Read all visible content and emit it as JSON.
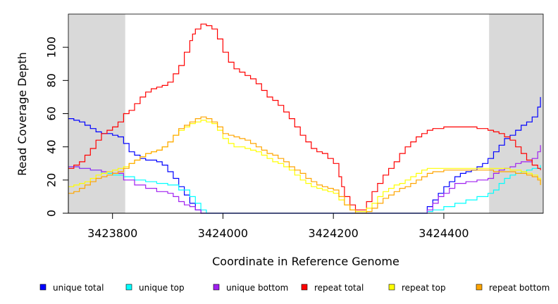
{
  "chart_data": {
    "type": "line",
    "xlabel": "Coordinate in Reference Genome",
    "ylabel": "Read Coverage Depth",
    "xlim": [
      3423720,
      3424580
    ],
    "ylim": [
      0,
      120
    ],
    "x_ticks": [
      {
        "value": 3423800,
        "label": "3423800"
      },
      {
        "value": 3424000,
        "label": "3424000"
      },
      {
        "value": 3424200,
        "label": "3424200"
      },
      {
        "value": 3424400,
        "label": "3424400"
      }
    ],
    "y_ticks": [
      {
        "value": 0,
        "label": "0"
      },
      {
        "value": 20,
        "label": "20"
      },
      {
        "value": 40,
        "label": "40"
      },
      {
        "value": 60,
        "label": "60"
      },
      {
        "value": 80,
        "label": "80"
      },
      {
        "value": 100,
        "label": "100"
      }
    ],
    "shaded_regions": [
      {
        "x0": 3423720,
        "x1": 3423823
      },
      {
        "x0": 3424482,
        "x1": 3424580
      }
    ],
    "background_color": "#d9d9d9",
    "grid": false,
    "legend_position": "bottom",
    "series": [
      {
        "name": "unique total",
        "color": "#0000ff",
        "x": [
          3423720,
          3423730,
          3423740,
          3423750,
          3423760,
          3423770,
          3423780,
          3423790,
          3423800,
          3423810,
          3423820,
          3423830,
          3423840,
          3423850,
          3423860,
          3423870,
          3423880,
          3423890,
          3423900,
          3423910,
          3423920,
          3423930,
          3423940,
          3423950,
          3423960,
          3424000,
          3424100,
          3424200,
          3424300,
          3424360,
          3424370,
          3424380,
          3424390,
          3424400,
          3424410,
          3424420,
          3424430,
          3424440,
          3424450,
          3424460,
          3424470,
          3424480,
          3424490,
          3424500,
          3424510,
          3424520,
          3424530,
          3424540,
          3424550,
          3424560,
          3424570,
          3424575
        ],
        "y": [
          57,
          56,
          55,
          53,
          51,
          49,
          48,
          48,
          47,
          46,
          42,
          37,
          35,
          33,
          32,
          32,
          31,
          29,
          25,
          21,
          16,
          11,
          6,
          2,
          0,
          0,
          0,
          0,
          0,
          0,
          4,
          8,
          12,
          16,
          19,
          22,
          24,
          25,
          26,
          28,
          30,
          33,
          37,
          41,
          45,
          47,
          50,
          53,
          55,
          58,
          64,
          70
        ]
      },
      {
        "name": "unique top",
        "color": "#00ffff",
        "x": [
          3423720,
          3423740,
          3423760,
          3423780,
          3423800,
          3423820,
          3423840,
          3423860,
          3423880,
          3423900,
          3423920,
          3423940,
          3423950,
          3423960,
          3423970,
          3424000,
          3424100,
          3424200,
          3424300,
          3424360,
          3424370,
          3424380,
          3424400,
          3424420,
          3424440,
          3424460,
          3424480,
          3424490,
          3424500,
          3424510,
          3424520,
          3424530,
          3424540,
          3424550,
          3424560,
          3424575
        ],
        "y": [
          28,
          27,
          26,
          24,
          23,
          22,
          20,
          19,
          18,
          17,
          14,
          10,
          6,
          2,
          0,
          0,
          0,
          0,
          0,
          0,
          1,
          2,
          4,
          6,
          8,
          10,
          12,
          14,
          18,
          21,
          23,
          24,
          25,
          26,
          27,
          29
        ]
      },
      {
        "name": "unique bottom",
        "color": "#a020f0",
        "x": [
          3423720,
          3423740,
          3423760,
          3423780,
          3423800,
          3423820,
          3423840,
          3423860,
          3423880,
          3423900,
          3423910,
          3423920,
          3423930,
          3423940,
          3423950,
          3423960,
          3424000,
          3424100,
          3424200,
          3424300,
          3424360,
          3424370,
          3424380,
          3424390,
          3424400,
          3424410,
          3424420,
          3424440,
          3424460,
          3424480,
          3424490,
          3424500,
          3424510,
          3424520,
          3424530,
          3424540,
          3424550,
          3424560,
          3424570,
          3424575
        ],
        "y": [
          28,
          27,
          26,
          25,
          24,
          20,
          17,
          15,
          13,
          12,
          10,
          7,
          5,
          4,
          2,
          0,
          0,
          0,
          0,
          0,
          0,
          2,
          6,
          10,
          12,
          15,
          18,
          19,
          20,
          21,
          24,
          26,
          27,
          28,
          30,
          31,
          31,
          33,
          37,
          41
        ]
      },
      {
        "name": "repeat total",
        "color": "#ff0000",
        "x": [
          3423720,
          3423730,
          3423740,
          3423750,
          3423760,
          3423770,
          3423780,
          3423790,
          3423800,
          3423810,
          3423820,
          3423830,
          3423840,
          3423850,
          3423860,
          3423870,
          3423880,
          3423890,
          3423900,
          3423910,
          3423920,
          3423930,
          3423940,
          3423945,
          3423950,
          3423960,
          3423970,
          3423980,
          3423990,
          3424000,
          3424010,
          3424020,
          3424030,
          3424040,
          3424050,
          3424060,
          3424070,
          3424080,
          3424090,
          3424100,
          3424110,
          3424120,
          3424130,
          3424140,
          3424150,
          3424160,
          3424170,
          3424180,
          3424190,
          3424200,
          3424210,
          3424215,
          3424220,
          3424230,
          3424240,
          3424250,
          3424260,
          3424270,
          3424280,
          3424290,
          3424300,
          3424310,
          3424320,
          3424330,
          3424340,
          3424350,
          3424360,
          3424370,
          3424380,
          3424390,
          3424400,
          3424410,
          3424420,
          3424430,
          3424440,
          3424450,
          3424460,
          3424470,
          3424480,
          3424490,
          3424500,
          3424510,
          3424520,
          3424530,
          3424540,
          3424550,
          3424560,
          3424570,
          3424575
        ],
        "y": [
          27,
          29,
          31,
          35,
          39,
          44,
          48,
          50,
          52,
          55,
          60,
          62,
          66,
          70,
          73,
          75,
          76,
          77,
          79,
          84,
          89,
          97,
          104,
          108,
          111,
          114,
          113,
          111,
          105,
          97,
          91,
          87,
          85,
          83,
          81,
          78,
          74,
          70,
          68,
          65,
          61,
          57,
          52,
          47,
          43,
          39,
          37,
          36,
          33,
          30,
          22,
          16,
          10,
          5,
          2,
          2,
          7,
          13,
          18,
          23,
          27,
          31,
          36,
          40,
          43,
          46,
          48,
          50,
          51,
          51,
          52,
          52,
          52,
          52,
          52,
          52,
          51,
          51,
          50,
          49,
          48,
          46,
          44,
          40,
          36,
          32,
          29,
          27,
          26
        ]
      },
      {
        "name": "repeat top",
        "color": "#ffff00",
        "x": [
          3423720,
          3423730,
          3423740,
          3423750,
          3423760,
          3423770,
          3423780,
          3423790,
          3423800,
          3423810,
          3423820,
          3423830,
          3423840,
          3423850,
          3423860,
          3423870,
          3423880,
          3423890,
          3423900,
          3423910,
          3423920,
          3423930,
          3423940,
          3423950,
          3423960,
          3423970,
          3423980,
          3423990,
          3424000,
          3424010,
          3424020,
          3424030,
          3424040,
          3424050,
          3424060,
          3424070,
          3424080,
          3424090,
          3424100,
          3424110,
          3424120,
          3424130,
          3424140,
          3424150,
          3424160,
          3424170,
          3424180,
          3424190,
          3424200,
          3424210,
          3424220,
          3424230,
          3424240,
          3424250,
          3424260,
          3424270,
          3424280,
          3424290,
          3424300,
          3424310,
          3424320,
          3424330,
          3424340,
          3424350,
          3424360,
          3424370,
          3424380,
          3424390,
          3424400,
          3424410,
          3424420,
          3424440,
          3424460,
          3424480,
          3424490,
          3424500,
          3424510,
          3424520,
          3424530,
          3424540,
          3424550,
          3424560,
          3424570,
          3424575
        ],
        "y": [
          16,
          17,
          18,
          19,
          21,
          23,
          24,
          25,
          26,
          27,
          28,
          30,
          32,
          34,
          36,
          37,
          38,
          40,
          43,
          47,
          50,
          52,
          54,
          55,
          56,
          55,
          54,
          50,
          45,
          42,
          40,
          40,
          39,
          38,
          37,
          35,
          33,
          31,
          30,
          28,
          26,
          23,
          20,
          18,
          16,
          15,
          14,
          13,
          12,
          8,
          5,
          2,
          1,
          1,
          3,
          6,
          10,
          13,
          15,
          17,
          18,
          20,
          22,
          24,
          26,
          27,
          27,
          27,
          27,
          27,
          27,
          27,
          27,
          27,
          27,
          27,
          27,
          26,
          26,
          25,
          24,
          23,
          21,
          17
        ]
      },
      {
        "name": "repeat bottom",
        "color": "#ffa500",
        "x": [
          3423720,
          3423730,
          3423740,
          3423750,
          3423760,
          3423770,
          3423780,
          3423790,
          3423800,
          3423810,
          3423820,
          3423830,
          3423840,
          3423850,
          3423860,
          3423870,
          3423880,
          3423890,
          3423900,
          3423910,
          3423920,
          3423930,
          3423940,
          3423950,
          3423960,
          3423970,
          3423980,
          3423990,
          3424000,
          3424010,
          3424020,
          3424030,
          3424040,
          3424050,
          3424060,
          3424070,
          3424080,
          3424090,
          3424100,
          3424110,
          3424120,
          3424130,
          3424140,
          3424150,
          3424160,
          3424170,
          3424180,
          3424190,
          3424200,
          3424210,
          3424220,
          3424230,
          3424240,
          3424250,
          3424260,
          3424270,
          3424280,
          3424290,
          3424300,
          3424310,
          3424320,
          3424330,
          3424340,
          3424350,
          3424360,
          3424370,
          3424380,
          3424390,
          3424400,
          3424410,
          3424420,
          3424440,
          3424460,
          3424480,
          3424490,
          3424500,
          3424510,
          3424520,
          3424530,
          3424540,
          3424550,
          3424560,
          3424570,
          3424575
        ],
        "y": [
          12,
          13,
          15,
          17,
          19,
          21,
          22,
          23,
          24,
          25,
          27,
          30,
          32,
          34,
          36,
          37,
          38,
          40,
          43,
          47,
          51,
          53,
          55,
          57,
          58,
          57,
          55,
          52,
          48,
          47,
          46,
          45,
          44,
          42,
          40,
          38,
          36,
          35,
          33,
          31,
          28,
          26,
          24,
          21,
          19,
          17,
          16,
          15,
          14,
          10,
          5,
          2,
          0,
          0,
          1,
          3,
          6,
          9,
          11,
          13,
          15,
          16,
          18,
          20,
          22,
          24,
          25,
          25,
          26,
          26,
          26,
          26,
          26,
          26,
          25,
          25,
          25,
          25,
          24,
          24,
          23,
          22,
          20,
          17
        ]
      }
    ]
  }
}
